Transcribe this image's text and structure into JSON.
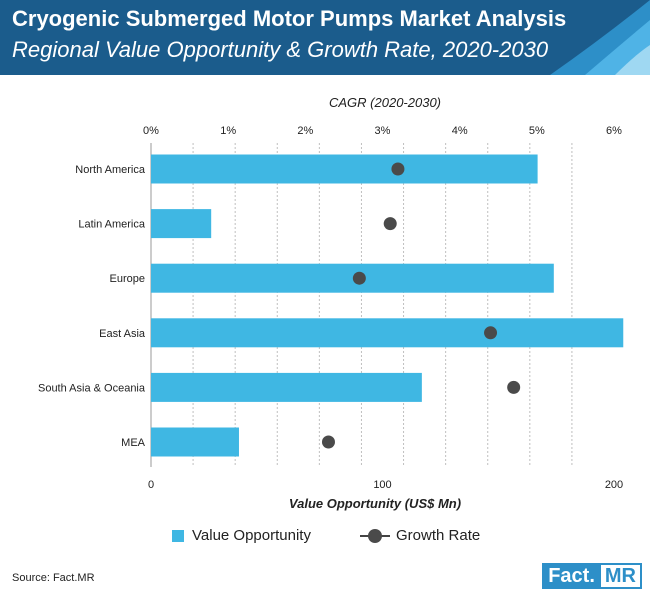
{
  "header": {
    "title": "Cryogenic Submerged Motor Pumps Market Analysis",
    "subtitle": "Regional Value Opportunity & Growth Rate, 2020-2030"
  },
  "colors": {
    "header_bg": "#1b5c8c",
    "bar": "#3fb7e3",
    "dot": "#4a4a4a",
    "grid": "#bfbfbf"
  },
  "chart_data": {
    "type": "bar",
    "orientation": "horizontal",
    "top_axis_label": "CAGR (2020-2030)",
    "top_ticks": [
      "0%",
      "1%",
      "2%",
      "3%",
      "4%",
      "5%",
      "6%"
    ],
    "top_range": [
      0,
      6
    ],
    "bottom_axis_label": "Value Opportunity (US$ Mn)",
    "bottom_ticks": [
      "0",
      "100",
      "200"
    ],
    "bottom_range": [
      0,
      200
    ],
    "categories": [
      "North America",
      "Latin America",
      "Europe",
      "East Asia",
      "South Asia & Oceania",
      "MEA"
    ],
    "series": [
      {
        "name": "Value Opportunity",
        "axis": "bottom",
        "values": [
          167,
          26,
          174,
          204,
          117,
          38
        ]
      },
      {
        "name": "Growth Rate",
        "axis": "top",
        "values": [
          3.2,
          3.1,
          2.7,
          4.4,
          4.7,
          2.3
        ]
      }
    ],
    "legend": [
      "Value Opportunity",
      "Growth Rate"
    ]
  },
  "footer": {
    "source": "Source: Fact.MR",
    "logo_part1": "Fact.",
    "logo_part2": "MR"
  }
}
